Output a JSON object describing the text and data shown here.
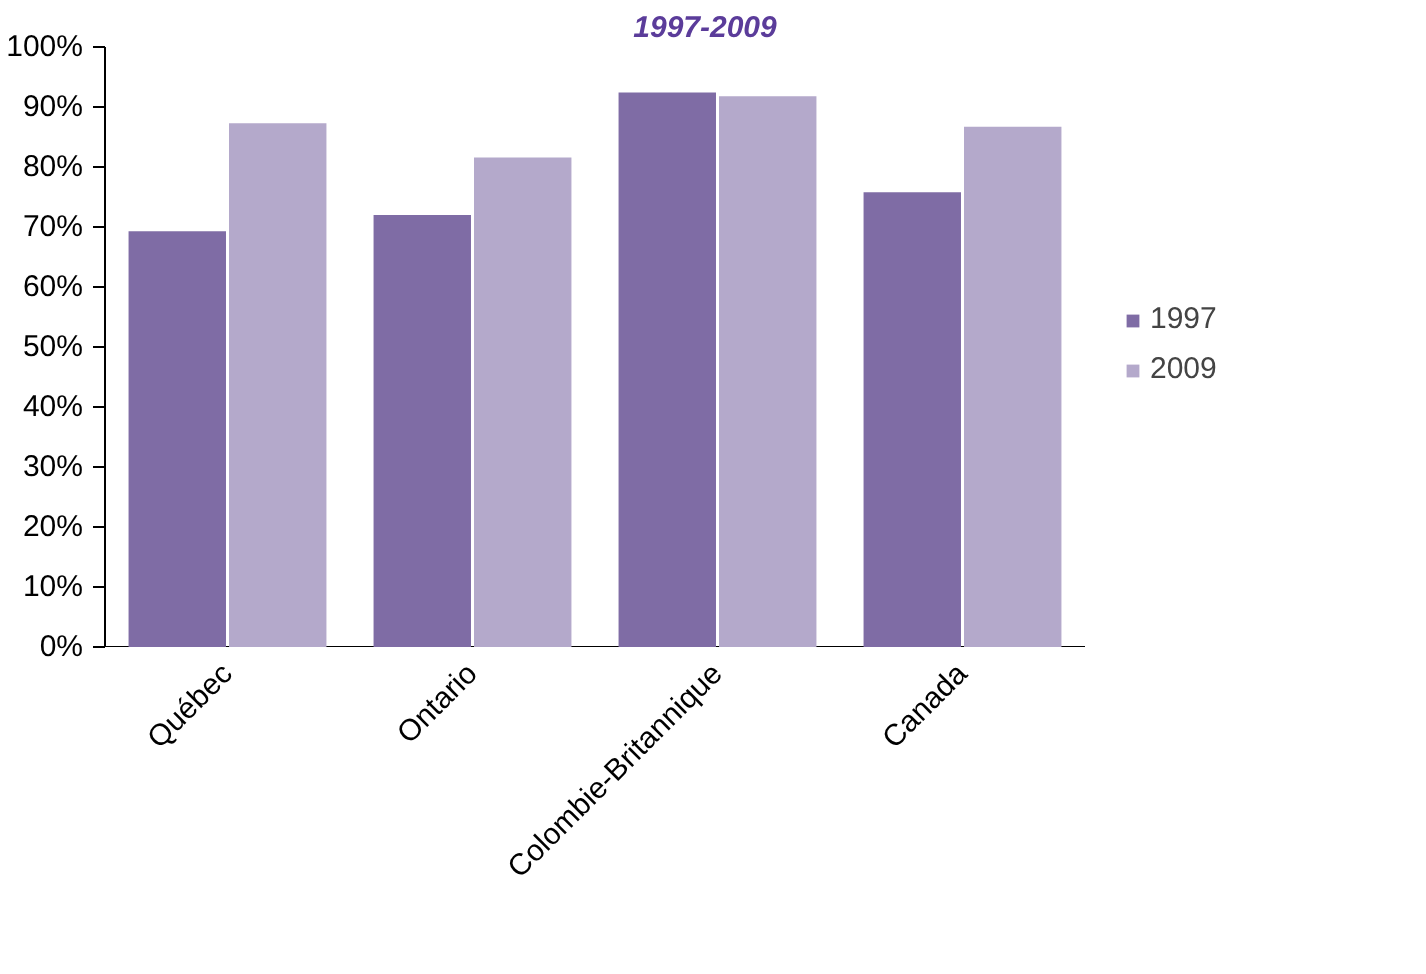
{
  "chart_data": {
    "type": "bar",
    "title": "1997-2009",
    "categories": [
      "Québec",
      "Ontario",
      "Colombie-Britannique",
      "Canada"
    ],
    "series": [
      {
        "name": "1997",
        "color": "#7f6ca5",
        "values": [
          69.3,
          72.0,
          92.4,
          75.8
        ]
      },
      {
        "name": "2009",
        "color": "#b4a9cb",
        "values": [
          87.3,
          81.6,
          91.8,
          86.7
        ]
      }
    ],
    "ylim": [
      0,
      100
    ],
    "yticks": [
      {
        "value": 0,
        "label": "0%"
      },
      {
        "value": 10,
        "label": "10%"
      },
      {
        "value": 20,
        "label": "20%"
      },
      {
        "value": 30,
        "label": "30%"
      },
      {
        "value": 40,
        "label": "40%"
      },
      {
        "value": 50,
        "label": "50%"
      },
      {
        "value": 60,
        "label": "60%"
      },
      {
        "value": 70,
        "label": "70%"
      },
      {
        "value": 80,
        "label": "80%"
      },
      {
        "value": 90,
        "label": "90%"
      },
      {
        "value": 100,
        "label": "100%"
      }
    ],
    "grid": false,
    "legend": "right"
  }
}
